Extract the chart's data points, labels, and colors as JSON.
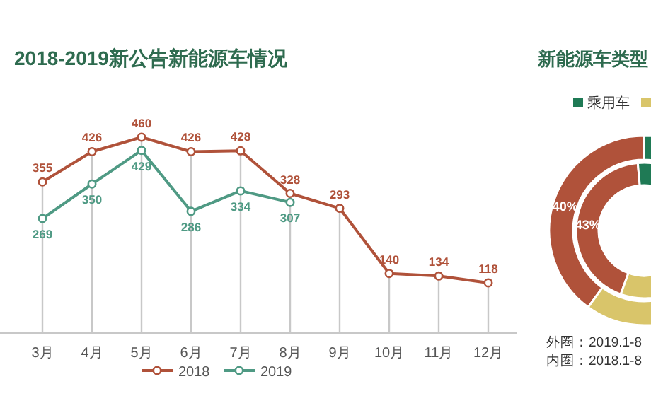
{
  "chart_data": [
    {
      "type": "line",
      "title": "2018-2019新公告新能源车情况",
      "categories": [
        "3月",
        "4月",
        "5月",
        "6月",
        "7月",
        "8月",
        "9月",
        "10月",
        "11月",
        "12月"
      ],
      "series": [
        {
          "name": "2018",
          "color": "#b0523a",
          "values": [
            355,
            426,
            460,
            426,
            428,
            328,
            293,
            140,
            134,
            118
          ]
        },
        {
          "name": "2019",
          "color": "#4f9a84",
          "values": [
            269,
            350,
            429,
            286,
            334,
            307,
            null,
            null,
            null,
            null
          ]
        }
      ],
      "ylim": [
        0,
        470
      ],
      "tick_labels": "x",
      "data_labels": true,
      "grid": "x",
      "legend": "bottom",
      "marker": "circle",
      "line_style": "solid"
    },
    {
      "type": "donut",
      "title": "新能源车类型",
      "categories": [
        "乘用车",
        null,
        null
      ],
      "series": [
        {
          "colors": [
            "#1f7a55",
            "#b0523a",
            "#d9c56a"
          ],
          "values": [
            45,
            40,
            15
          ],
          "value_labels": [
            null,
            "40%",
            null
          ]
        },
        {
          "colors": [
            "#1f7a55",
            "#b0523a",
            "#d9c56a"
          ],
          "values": [
            45,
            43,
            12
          ],
          "value_labels": [
            null,
            "43%",
            null
          ]
        }
      ],
      "legend": "top",
      "annotations": [
        "外圈：2019.1-8",
        "内圈：2018.1-8"
      ]
    }
  ]
}
